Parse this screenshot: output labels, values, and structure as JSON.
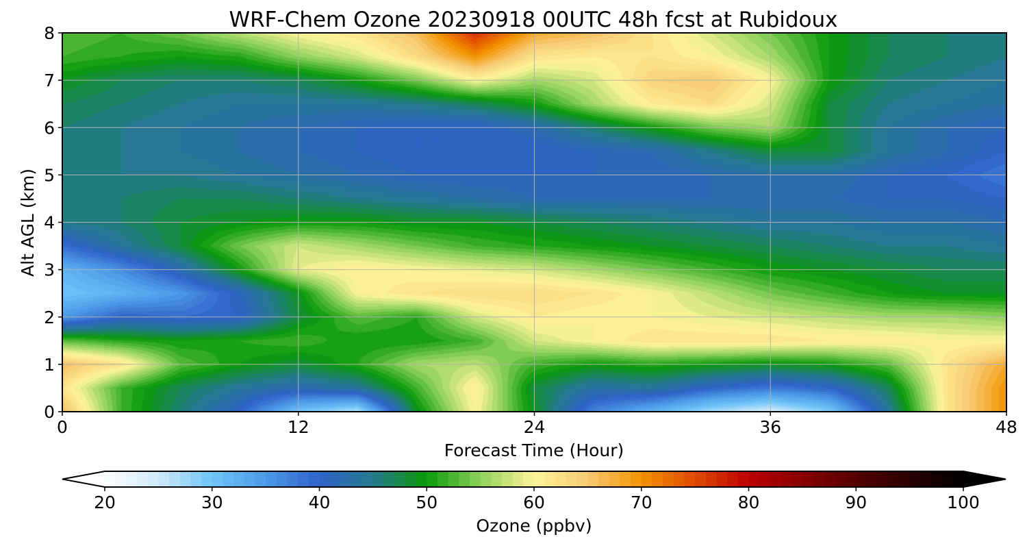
{
  "chart_data": {
    "type": "heatmap",
    "title": "WRF-Chem Ozone  20230918 00UTC 48h fcst at Rubidoux",
    "xlabel": "Forecast Time (Hour)",
    "ylabel": "Alt AGL (km)",
    "xlim": [
      0,
      48
    ],
    "ylim": [
      0,
      8
    ],
    "x_ticks": [
      "0",
      "12",
      "24",
      "36",
      "48"
    ],
    "y_ticks": [
      "0",
      "1",
      "2",
      "3",
      "4",
      "5",
      "6",
      "7",
      "8"
    ],
    "grid": true,
    "x": [
      0,
      3,
      6,
      9,
      12,
      15,
      18,
      21,
      24,
      27,
      30,
      33,
      36,
      39,
      42,
      45,
      48
    ],
    "y": [
      0,
      0.5,
      1,
      1.5,
      2,
      2.5,
      3,
      3.5,
      4,
      4.5,
      5,
      5.5,
      6,
      6.5,
      7,
      7.5,
      8
    ],
    "z": [
      [
        66,
        52,
        46,
        40,
        30,
        26,
        49,
        60,
        49,
        37,
        32,
        27,
        24,
        29,
        44,
        62,
        70
      ],
      [
        62,
        52,
        47,
        44,
        42,
        44,
        52,
        61,
        48,
        43,
        44,
        40,
        38,
        40,
        47,
        62,
        70
      ],
      [
        66,
        62,
        53,
        50,
        48,
        51,
        56,
        57,
        52,
        50,
        51,
        50,
        49,
        50,
        53,
        62,
        68
      ],
      [
        53,
        51,
        50,
        51,
        52,
        50,
        50,
        52,
        58,
        60,
        62,
        62,
        62,
        61,
        61,
        60,
        60
      ],
      [
        35,
        40,
        39,
        40,
        48,
        53,
        51,
        58,
        61,
        60,
        60,
        59,
        58,
        57,
        56,
        56,
        55
      ],
      [
        30,
        32,
        35,
        41,
        49,
        60,
        62,
        63,
        63,
        62,
        60,
        57,
        54,
        52,
        50,
        49,
        49
      ],
      [
        32,
        36,
        42,
        50,
        59,
        61,
        60,
        59,
        58,
        56,
        54,
        52,
        50,
        49,
        48,
        47,
        47
      ],
      [
        39,
        44,
        48,
        54,
        58,
        56,
        54,
        52,
        51,
        50,
        49,
        48,
        47,
        46,
        45,
        45,
        44
      ],
      [
        45,
        46,
        48,
        49,
        50,
        50,
        49,
        49,
        48,
        47,
        46,
        45,
        44,
        44,
        43,
        43,
        42
      ],
      [
        46,
        46,
        47,
        47,
        46,
        45,
        44,
        43,
        42,
        42,
        42,
        42,
        42,
        42,
        41,
        41,
        40
      ],
      [
        46,
        45,
        45,
        44,
        43,
        42,
        41,
        41,
        41,
        41,
        41,
        42,
        43,
        43,
        41,
        40,
        38
      ],
      [
        46,
        45,
        44,
        43,
        42,
        41,
        40,
        40,
        40,
        41,
        42,
        45,
        48,
        48,
        44,
        42,
        40
      ],
      [
        46,
        45,
        44,
        43,
        42,
        41,
        40,
        40,
        42,
        46,
        50,
        54,
        56,
        48,
        44,
        42,
        41
      ],
      [
        47,
        46,
        45,
        44,
        44,
        44,
        45,
        47,
        50,
        56,
        61,
        63,
        58,
        48,
        45,
        44,
        43
      ],
      [
        49,
        47,
        46,
        46,
        47,
        50,
        54,
        60,
        56,
        58,
        64,
        65,
        60,
        50,
        46,
        45,
        44
      ],
      [
        52,
        51,
        50,
        51,
        55,
        58,
        63,
        70,
        62,
        61,
        62,
        60,
        56,
        50,
        47,
        46,
        45
      ],
      [
        53,
        52,
        54,
        57,
        60,
        62,
        66,
        77,
        68,
        66,
        62,
        58,
        54,
        50,
        47,
        46,
        45
      ]
    ],
    "colorbar": {
      "label": "Ozone  (ppbv)",
      "range": [
        20,
        100
      ],
      "ticks": [
        "20",
        "30",
        "40",
        "50",
        "60",
        "70",
        "80",
        "90",
        "100"
      ],
      "extend": "both",
      "levels_step": 1,
      "stops": [
        {
          "v": 20,
          "c": "#ffffff"
        },
        {
          "v": 25,
          "c": "#cfe9fb"
        },
        {
          "v": 30,
          "c": "#6ec4f7"
        },
        {
          "v": 35,
          "c": "#4d9ae8"
        },
        {
          "v": 40,
          "c": "#2f62c8"
        },
        {
          "v": 45,
          "c": "#257a8e"
        },
        {
          "v": 50,
          "c": "#0a9a0a"
        },
        {
          "v": 55,
          "c": "#8ed25a"
        },
        {
          "v": 60,
          "c": "#fff49a"
        },
        {
          "v": 65,
          "c": "#f7ca72"
        },
        {
          "v": 70,
          "c": "#f39200"
        },
        {
          "v": 75,
          "c": "#df4a00"
        },
        {
          "v": 80,
          "c": "#bb0000"
        },
        {
          "v": 90,
          "c": "#550000"
        },
        {
          "v": 100,
          "c": "#000000"
        }
      ]
    }
  }
}
